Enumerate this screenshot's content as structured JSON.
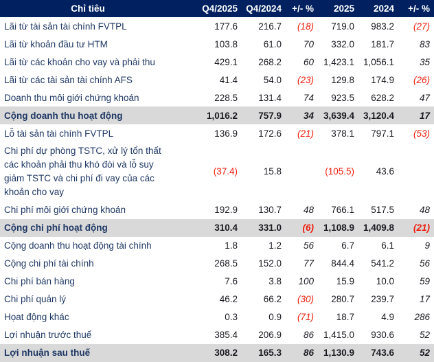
{
  "colors": {
    "header_bg": "#002060",
    "band_bg": "#d9d9d9",
    "negative": "#ee1c0d",
    "label_navy": "#1f3864",
    "number_ink": "#1a1a22",
    "border_navy": "#002060"
  },
  "chart_data": {
    "type": "table",
    "title": "",
    "columns": [
      "Chỉ tiêu",
      "Q4/2025",
      "Q4/2024",
      "+/- %",
      "2025",
      "2024",
      "+/- %"
    ],
    "percent_column_indexes": [
      2,
      5
    ],
    "rows": [
      {
        "label": "Lãi từ tài sản tài chính FVTPL",
        "values": [
          "177.6",
          "216.7",
          "(18)",
          "719.0",
          "983.2",
          "(27)"
        ],
        "emphasis": false,
        "multiline": false
      },
      {
        "label": "Lãi từ khoản đầu tư HTM",
        "values": [
          "103.8",
          "61.0",
          "70",
          "332.0",
          "181.7",
          "83"
        ],
        "emphasis": false,
        "multiline": false
      },
      {
        "label": "Lãi từ các khoản cho vay và phải thu",
        "values": [
          "429.1",
          "268.2",
          "60",
          "1,423.1",
          "1,056.1",
          "35"
        ],
        "emphasis": false,
        "multiline": false
      },
      {
        "label": "Lãi từ các tài sản tài chính AFS",
        "values": [
          "41.4",
          "54.0",
          "(23)",
          "129.8",
          "174.9",
          "(26)"
        ],
        "emphasis": false,
        "multiline": false
      },
      {
        "label": "Doanh thu môi giới chứng khoán",
        "values": [
          "228.5",
          "131.4",
          "74",
          "923.5",
          "628.2",
          "47"
        ],
        "emphasis": false,
        "multiline": false
      },
      {
        "label": "Cộng doanh thu hoạt động",
        "values": [
          "1,016.2",
          "757.9",
          "34",
          "3,639.4",
          "3,120.4",
          "17"
        ],
        "emphasis": true,
        "multiline": false
      },
      {
        "label": "Lỗ tài sản tài chính FVTPL",
        "values": [
          "136.9",
          "172.6",
          "(21)",
          "378.1",
          "797.1",
          "(53)"
        ],
        "emphasis": false,
        "multiline": false
      },
      {
        "label": "Chi phí dự phòng TSTC, xử lý tổn thất các khoản phải thu khó đòi và lỗ suy giảm TSTC và chi phí đi vay của các khoản cho vay",
        "values": [
          "(37.4)",
          "15.8",
          "",
          "(105.5)",
          "43.6",
          ""
        ],
        "emphasis": false,
        "multiline": true
      },
      {
        "label": "Chi phí môi giới chứng khoán",
        "values": [
          "192.9",
          "130.7",
          "48",
          "766.1",
          "517.5",
          "48"
        ],
        "emphasis": false,
        "multiline": false
      },
      {
        "label": "Cộng chi phí hoạt động",
        "values": [
          "310.4",
          "331.0",
          "(6)",
          "1,108.9",
          "1,409.8",
          "(21)"
        ],
        "emphasis": true,
        "multiline": false
      },
      {
        "label": "Cộng doanh thu hoạt động tài chính",
        "values": [
          "1.8",
          "1.2",
          "56",
          "6.7",
          "6.1",
          "9"
        ],
        "emphasis": false,
        "multiline": false
      },
      {
        "label": "Cộng chi phí tài chính",
        "values": [
          "268.5",
          "152.0",
          "77",
          "844.4",
          "541.2",
          "56"
        ],
        "emphasis": false,
        "multiline": false
      },
      {
        "label": "Chi phí bán hàng",
        "values": [
          "7.6",
          "3.8",
          "100",
          "15.9",
          "10.0",
          "59"
        ],
        "emphasis": false,
        "multiline": false
      },
      {
        "label": "Chi phí quản lý",
        "values": [
          "46.2",
          "66.2",
          "(30)",
          "280.7",
          "239.7",
          "17"
        ],
        "emphasis": false,
        "multiline": false
      },
      {
        "label": "Họat động khác",
        "values": [
          "0.3",
          "0.9",
          "(71)",
          "18.7",
          "4.9",
          "286"
        ],
        "emphasis": false,
        "multiline": false
      },
      {
        "label": "Lợi nhuận trước thuế",
        "values": [
          "385.4",
          "206.9",
          "86",
          "1,415.0",
          "930.6",
          "52"
        ],
        "emphasis": false,
        "multiline": false
      },
      {
        "label": "Lợi nhuận sau thuế",
        "values": [
          "308.2",
          "165.3",
          "86",
          "1,130.9",
          "743.6",
          "52"
        ],
        "emphasis": true,
        "multiline": false
      }
    ]
  }
}
